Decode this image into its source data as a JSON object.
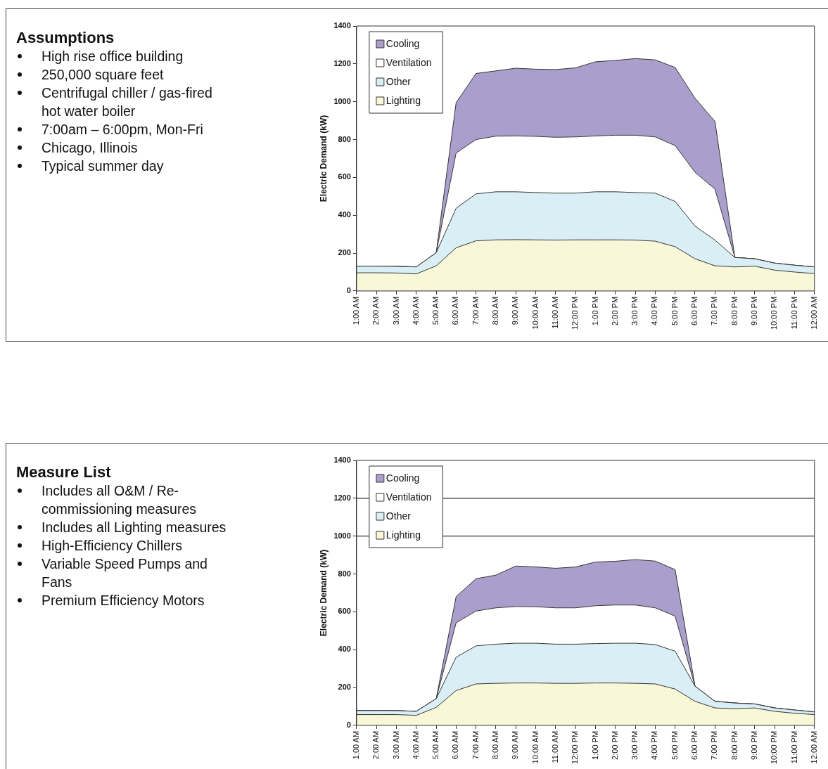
{
  "chart_data": [
    {
      "type": "other",
      "title": "Assumptions",
      "annotations": [
        "High rise office building",
        "250,000 square feet",
        "Centrifugal chiller / gas-fired hot water boiler",
        "7:00am – 6:00pm, Mon-Fri",
        "Chicago, Illinois",
        "Typical summer day"
      ]
    },
    {
      "type": "area",
      "stacked": true,
      "ylabel": "Electric Demand (kW)",
      "ylim": [
        0,
        1400
      ],
      "yticks": [
        0,
        200,
        400,
        600,
        800,
        1000,
        1200,
        1400
      ],
      "legend": "top left",
      "categories": [
        "1:00 AM",
        "2:00 AM",
        "3:00 AM",
        "4:00 AM",
        "5:00 AM",
        "6:00 AM",
        "7:00 AM",
        "8:00 AM",
        "9:00 AM",
        "10:00 AM",
        "11:00 AM",
        "12:00 PM",
        "1:00 PM",
        "2:00 PM",
        "3:00 PM",
        "4:00 PM",
        "5:00 PM",
        "6:00 PM",
        "7:00 PM",
        "8:00 PM",
        "9:00 PM",
        "10:00 PM",
        "11:00 PM",
        "12:00 AM"
      ],
      "series": [
        {
          "name": "Lighting",
          "color": "#f8f7d8",
          "values": [
            96,
            96,
            95,
            90,
            133,
            228,
            265,
            270,
            271,
            270,
            269,
            270,
            270,
            270,
            269,
            263,
            234,
            170,
            133,
            127,
            131,
            110,
            100,
            92
          ]
        },
        {
          "name": "Other",
          "color": "#daeef5",
          "values": [
            35,
            35,
            35,
            37,
            69,
            209,
            248,
            254,
            253,
            250,
            248,
            247,
            254,
            254,
            251,
            254,
            239,
            173,
            136,
            50,
            39,
            37,
            36,
            35
          ]
        },
        {
          "name": "Ventilation",
          "color": "#ffffff",
          "values": [
            0,
            0,
            0,
            0,
            0,
            292,
            287,
            294,
            295,
            297,
            295,
            297,
            295,
            299,
            303,
            297,
            295,
            284,
            269,
            0,
            0,
            0,
            0,
            0
          ]
        },
        {
          "name": "Cooling",
          "color": "#aa9fcc",
          "values": [
            0,
            0,
            0,
            0,
            0,
            266,
            349,
            345,
            358,
            355,
            358,
            365,
            392,
            395,
            405,
            407,
            413,
            391,
            358,
            0,
            0,
            0,
            0,
            0
          ]
        }
      ]
    },
    {
      "type": "other",
      "title": "Measure List",
      "annotations": [
        "Includes all O&M / Re-commissioning measures",
        "Includes all Lighting measures",
        "High-Efficiency Chillers",
        "Variable Speed Pumps and Fans",
        "Premium Efficiency Motors"
      ]
    },
    {
      "type": "area",
      "stacked": true,
      "ylabel": "Electric Demand (kW)",
      "ylim": [
        0,
        1400
      ],
      "yticks": [
        0,
        200,
        400,
        600,
        800,
        1000,
        1200,
        1400
      ],
      "legend": "top left",
      "ref_lines": [
        {
          "axis": "y",
          "value": 1000
        },
        {
          "axis": "y",
          "value": 1200
        }
      ],
      "categories": [
        "1:00 AM",
        "2:00 AM",
        "3:00 AM",
        "4:00 AM",
        "5:00 AM",
        "6:00 AM",
        "7:00 AM",
        "8:00 AM",
        "9:00 AM",
        "10:00 AM",
        "11:00 AM",
        "12:00 PM",
        "1:00 PM",
        "2:00 PM",
        "3:00 PM",
        "4:00 PM",
        "5:00 PM",
        "6:00 PM",
        "7:00 PM",
        "8:00 PM",
        "9:00 PM",
        "10:00 PM",
        "11:00 PM",
        "12:00 AM"
      ],
      "series": [
        {
          "name": "Lighting",
          "color": "#f8f7d8",
          "values": [
            57,
            57,
            57,
            53,
            95,
            184,
            219,
            222,
            224,
            224,
            222,
            222,
            224,
            224,
            222,
            219,
            192,
            127,
            92,
            88,
            92,
            74,
            64,
            57
          ]
        },
        {
          "name": "Other",
          "color": "#daeef5",
          "values": [
            21,
            21,
            21,
            21,
            46,
            176,
            201,
            207,
            210,
            210,
            207,
            207,
            208,
            210,
            212,
            208,
            200,
            80,
            35,
            30,
            21,
            18,
            17,
            14
          ]
        },
        {
          "name": "Ventilation",
          "color": "#ffffff",
          "values": [
            0,
            0,
            0,
            0,
            0,
            182,
            184,
            192,
            194,
            193,
            192,
            192,
            200,
            202,
            202,
            194,
            185,
            0,
            0,
            0,
            0,
            0,
            0,
            0
          ]
        },
        {
          "name": "Cooling",
          "color": "#aa9fcc",
          "values": [
            0,
            0,
            0,
            0,
            0,
            138,
            171,
            173,
            214,
            210,
            209,
            216,
            231,
            231,
            240,
            247,
            246,
            0,
            0,
            0,
            0,
            0,
            0,
            0
          ]
        }
      ]
    }
  ]
}
